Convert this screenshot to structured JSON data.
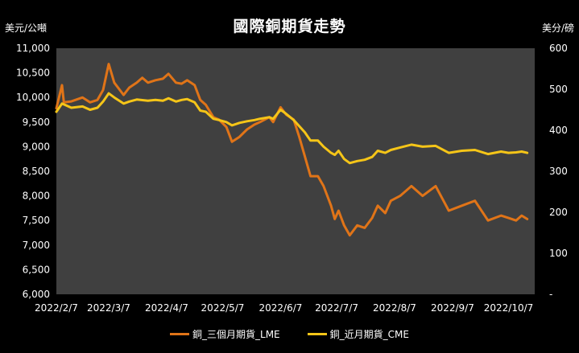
{
  "chart_data": {
    "type": "line",
    "title": "國際銅期貨走勢",
    "left_unit": "美元/公噸",
    "right_unit": "美分/磅",
    "x_ticks": [
      "2022/2/7",
      "2022/3/7",
      "2022/4/7",
      "2022/5/7",
      "2022/6/7",
      "2022/7/7",
      "2022/8/7",
      "2022/9/7",
      "2022/10/7"
    ],
    "y_left": {
      "min": 6000,
      "max": 11000,
      "ticks": [
        "6,000",
        "6,500",
        "7,000",
        "7,500",
        "8,000",
        "8,500",
        "9,000",
        "9,500",
        "10,000",
        "10,500",
        "11,000"
      ]
    },
    "y_right": {
      "min": 0,
      "max": 600,
      "ticks": [
        "-",
        "100",
        "200",
        "300",
        "400",
        "500",
        "600"
      ]
    },
    "legend_position": "bottom",
    "grid": false,
    "colors": {
      "LME": "#E07418",
      "CME": "#F5C518",
      "plot_bg": "#404040"
    },
    "series": [
      {
        "name": "銅_三個月期貨_LME",
        "axis": "left",
        "color": "#E07418",
        "points": [
          [
            "2022-02-07",
            9780
          ],
          [
            "2022-02-10",
            10250
          ],
          [
            "2022-02-11",
            9900
          ],
          [
            "2022-02-15",
            9920
          ],
          [
            "2022-02-21",
            10000
          ],
          [
            "2022-02-25",
            9900
          ],
          [
            "2022-03-01",
            9950
          ],
          [
            "2022-03-04",
            10150
          ],
          [
            "2022-03-07",
            10680
          ],
          [
            "2022-03-10",
            10300
          ],
          [
            "2022-03-15",
            10050
          ],
          [
            "2022-03-18",
            10200
          ],
          [
            "2022-03-22",
            10300
          ],
          [
            "2022-03-25",
            10400
          ],
          [
            "2022-03-28",
            10300
          ],
          [
            "2022-04-01",
            10350
          ],
          [
            "2022-04-05",
            10380
          ],
          [
            "2022-04-08",
            10480
          ],
          [
            "2022-04-12",
            10300
          ],
          [
            "2022-04-15",
            10280
          ],
          [
            "2022-04-18",
            10350
          ],
          [
            "2022-04-22",
            10250
          ],
          [
            "2022-04-25",
            9950
          ],
          [
            "2022-04-28",
            9850
          ],
          [
            "2022-05-02",
            9600
          ],
          [
            "2022-05-05",
            9550
          ],
          [
            "2022-05-09",
            9400
          ],
          [
            "2022-05-12",
            9100
          ],
          [
            "2022-05-16",
            9200
          ],
          [
            "2022-05-20",
            9350
          ],
          [
            "2022-05-24",
            9450
          ],
          [
            "2022-05-27",
            9500
          ],
          [
            "2022-06-01",
            9600
          ],
          [
            "2022-06-03",
            9500
          ],
          [
            "2022-06-07",
            9800
          ],
          [
            "2022-06-10",
            9650
          ],
          [
            "2022-06-14",
            9550
          ],
          [
            "2022-06-17",
            9200
          ],
          [
            "2022-06-20",
            8800
          ],
          [
            "2022-06-23",
            8400
          ],
          [
            "2022-06-27",
            8400
          ],
          [
            "2022-06-30",
            8200
          ],
          [
            "2022-07-04",
            7800
          ],
          [
            "2022-07-06",
            7530
          ],
          [
            "2022-07-08",
            7700
          ],
          [
            "2022-07-11",
            7400
          ],
          [
            "2022-07-14",
            7200
          ],
          [
            "2022-07-18",
            7400
          ],
          [
            "2022-07-22",
            7350
          ],
          [
            "2022-07-26",
            7550
          ],
          [
            "2022-07-29",
            7800
          ],
          [
            "2022-08-02",
            7650
          ],
          [
            "2022-08-05",
            7900
          ],
          [
            "2022-08-10",
            8000
          ],
          [
            "2022-08-16",
            8200
          ],
          [
            "2022-08-22",
            8000
          ],
          [
            "2022-08-29",
            8200
          ],
          [
            "2022-09-05",
            7700
          ],
          [
            "2022-09-12",
            7800
          ],
          [
            "2022-09-19",
            7900
          ],
          [
            "2022-09-26",
            7500
          ],
          [
            "2022-10-03",
            7600
          ],
          [
            "2022-10-07",
            7550
          ],
          [
            "2022-10-11",
            7500
          ],
          [
            "2022-10-14",
            7600
          ],
          [
            "2022-10-17",
            7530
          ]
        ]
      },
      {
        "name": "銅_近月期貨_CME",
        "axis": "right",
        "color": "#F5C518",
        "points": [
          [
            "2022-02-07",
            445
          ],
          [
            "2022-02-10",
            465
          ],
          [
            "2022-02-15",
            455
          ],
          [
            "2022-02-21",
            458
          ],
          [
            "2022-02-25",
            450
          ],
          [
            "2022-03-01",
            455
          ],
          [
            "2022-03-04",
            470
          ],
          [
            "2022-03-07",
            490
          ],
          [
            "2022-03-10",
            480
          ],
          [
            "2022-03-15",
            465
          ],
          [
            "2022-03-18",
            470
          ],
          [
            "2022-03-22",
            475
          ],
          [
            "2022-03-28",
            472
          ],
          [
            "2022-04-01",
            474
          ],
          [
            "2022-04-05",
            472
          ],
          [
            "2022-04-08",
            478
          ],
          [
            "2022-04-12",
            470
          ],
          [
            "2022-04-15",
            474
          ],
          [
            "2022-04-18",
            476
          ],
          [
            "2022-04-22",
            468
          ],
          [
            "2022-04-25",
            448
          ],
          [
            "2022-04-28",
            445
          ],
          [
            "2022-05-02",
            428
          ],
          [
            "2022-05-05",
            425
          ],
          [
            "2022-05-09",
            420
          ],
          [
            "2022-05-12",
            412
          ],
          [
            "2022-05-16",
            418
          ],
          [
            "2022-05-20",
            422
          ],
          [
            "2022-05-24",
            425
          ],
          [
            "2022-05-27",
            428
          ],
          [
            "2022-06-01",
            432
          ],
          [
            "2022-06-03",
            428
          ],
          [
            "2022-06-07",
            450
          ],
          [
            "2022-06-10",
            440
          ],
          [
            "2022-06-14",
            425
          ],
          [
            "2022-06-17",
            410
          ],
          [
            "2022-06-20",
            395
          ],
          [
            "2022-06-23",
            375
          ],
          [
            "2022-06-27",
            375
          ],
          [
            "2022-06-30",
            360
          ],
          [
            "2022-07-04",
            345
          ],
          [
            "2022-07-06",
            340
          ],
          [
            "2022-07-08",
            350
          ],
          [
            "2022-07-11",
            330
          ],
          [
            "2022-07-14",
            320
          ],
          [
            "2022-07-18",
            325
          ],
          [
            "2022-07-22",
            328
          ],
          [
            "2022-07-26",
            335
          ],
          [
            "2022-07-29",
            350
          ],
          [
            "2022-08-02",
            345
          ],
          [
            "2022-08-05",
            352
          ],
          [
            "2022-08-10",
            358
          ],
          [
            "2022-08-16",
            365
          ],
          [
            "2022-08-22",
            360
          ],
          [
            "2022-08-29",
            362
          ],
          [
            "2022-09-05",
            345
          ],
          [
            "2022-09-12",
            350
          ],
          [
            "2022-09-19",
            352
          ],
          [
            "2022-09-26",
            342
          ],
          [
            "2022-10-03",
            348
          ],
          [
            "2022-10-07",
            345
          ],
          [
            "2022-10-11",
            346
          ],
          [
            "2022-10-14",
            348
          ],
          [
            "2022-10-17",
            345
          ]
        ]
      }
    ]
  }
}
